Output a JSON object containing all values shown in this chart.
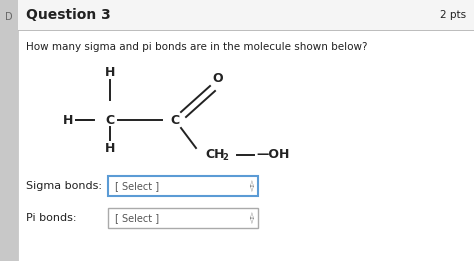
{
  "title": "Question 3",
  "pts_text": "2 pts",
  "question_text": "How many sigma and pi bonds are in the molecule shown below?",
  "bg_color": "#e8e8e8",
  "panel_bg": "#f5f5f5",
  "white_bg": "#ffffff",
  "border_color": "#bbbbbb",
  "text_color": "#222222",
  "sigma_label": "Sigma bonds:",
  "pi_label": "Pi bonds:",
  "select_text": "[ Select ]",
  "dropdown_border_sigma": "#5b9bd5",
  "dropdown_border_pi": "#aaaaaa",
  "dropdown_bg": "#ffffff",
  "left_tab_color": "#c8c8c8",
  "title_fontsize": 10,
  "body_fontsize": 7.5,
  "mol_fontsize": 9,
  "label_fontsize": 8
}
